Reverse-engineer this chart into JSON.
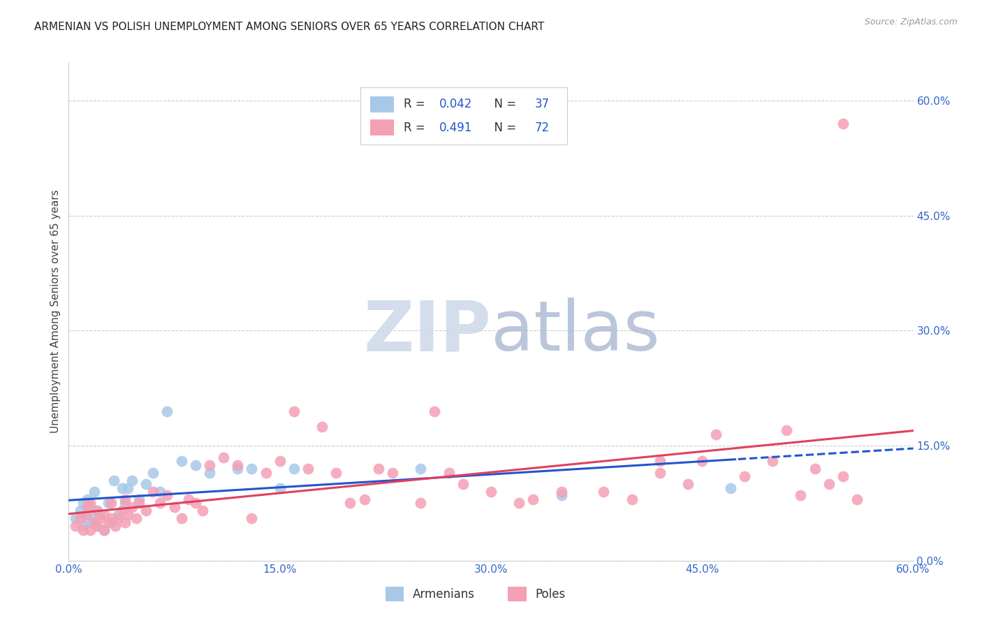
{
  "title": "ARMENIAN VS POLISH UNEMPLOYMENT AMONG SENIORS OVER 65 YEARS CORRELATION CHART",
  "source": "Source: ZipAtlas.com",
  "ylabel": "Unemployment Among Seniors over 65 years",
  "xlabel_armenians": "Armenians",
  "xlabel_poles": "Poles",
  "xlim": [
    0.0,
    0.6
  ],
  "ylim": [
    0.0,
    0.65
  ],
  "xtick_vals": [
    0.0,
    0.15,
    0.3,
    0.45,
    0.6
  ],
  "ytick_vals": [
    0.0,
    0.15,
    0.3,
    0.45,
    0.6
  ],
  "R_armenian": 0.042,
  "N_armenian": 37,
  "R_polish": 0.491,
  "N_polish": 72,
  "color_armenian": "#a8c8e8",
  "color_polish": "#f4a0b4",
  "line_color_armenian": "#2255cc",
  "line_color_polish": "#e04060",
  "watermark_zip_color": "#c8d4e8",
  "watermark_atlas_color": "#b0c0d8",
  "background_color": "#ffffff",
  "armenian_x": [
    0.005,
    0.008,
    0.01,
    0.01,
    0.012,
    0.013,
    0.015,
    0.015,
    0.017,
    0.018,
    0.02,
    0.02,
    0.022,
    0.025,
    0.028,
    0.03,
    0.032,
    0.035,
    0.038,
    0.04,
    0.042,
    0.045,
    0.05,
    0.055,
    0.06,
    0.065,
    0.07,
    0.08,
    0.09,
    0.1,
    0.12,
    0.13,
    0.15,
    0.16,
    0.25,
    0.35,
    0.47
  ],
  "armenian_y": [
    0.055,
    0.065,
    0.045,
    0.075,
    0.06,
    0.08,
    0.05,
    0.07,
    0.055,
    0.09,
    0.045,
    0.065,
    0.06,
    0.04,
    0.075,
    0.05,
    0.105,
    0.06,
    0.095,
    0.075,
    0.095,
    0.105,
    0.08,
    0.1,
    0.115,
    0.09,
    0.195,
    0.13,
    0.125,
    0.115,
    0.12,
    0.12,
    0.095,
    0.12,
    0.12,
    0.085,
    0.095
  ],
  "polish_x": [
    0.005,
    0.008,
    0.01,
    0.012,
    0.013,
    0.015,
    0.015,
    0.018,
    0.02,
    0.02,
    0.022,
    0.025,
    0.025,
    0.028,
    0.03,
    0.03,
    0.033,
    0.035,
    0.038,
    0.04,
    0.04,
    0.042,
    0.045,
    0.048,
    0.05,
    0.055,
    0.06,
    0.065,
    0.07,
    0.075,
    0.08,
    0.085,
    0.09,
    0.095,
    0.1,
    0.11,
    0.12,
    0.13,
    0.14,
    0.15,
    0.16,
    0.17,
    0.18,
    0.19,
    0.2,
    0.21,
    0.22,
    0.23,
    0.25,
    0.26,
    0.27,
    0.28,
    0.3,
    0.32,
    0.33,
    0.35,
    0.38,
    0.4,
    0.42,
    0.44,
    0.45,
    0.46,
    0.48,
    0.5,
    0.51,
    0.52,
    0.53,
    0.54,
    0.55,
    0.56,
    0.42,
    0.55
  ],
  "polish_y": [
    0.045,
    0.055,
    0.04,
    0.06,
    0.07,
    0.04,
    0.075,
    0.05,
    0.045,
    0.065,
    0.055,
    0.04,
    0.06,
    0.05,
    0.055,
    0.075,
    0.045,
    0.055,
    0.065,
    0.05,
    0.08,
    0.06,
    0.07,
    0.055,
    0.075,
    0.065,
    0.09,
    0.075,
    0.085,
    0.07,
    0.055,
    0.08,
    0.075,
    0.065,
    0.125,
    0.135,
    0.125,
    0.055,
    0.115,
    0.13,
    0.195,
    0.12,
    0.175,
    0.115,
    0.075,
    0.08,
    0.12,
    0.115,
    0.075,
    0.195,
    0.115,
    0.1,
    0.09,
    0.075,
    0.08,
    0.09,
    0.09,
    0.08,
    0.13,
    0.1,
    0.13,
    0.165,
    0.11,
    0.13,
    0.17,
    0.085,
    0.12,
    0.1,
    0.11,
    0.08,
    0.115,
    0.57
  ]
}
